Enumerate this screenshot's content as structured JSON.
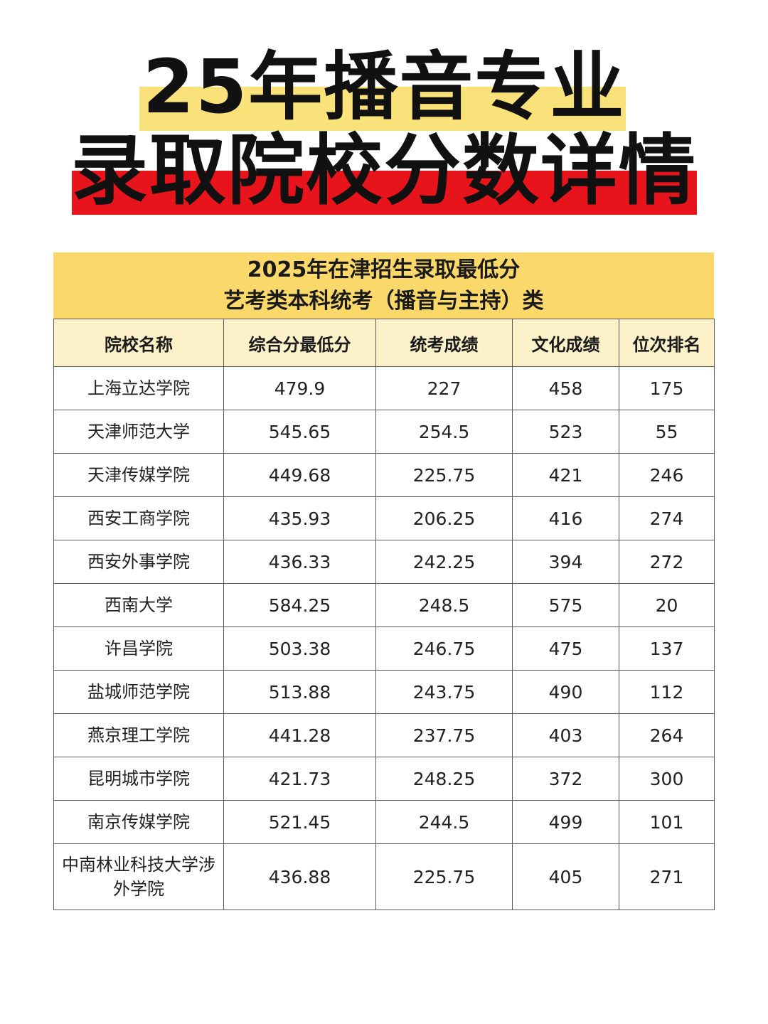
{
  "title": {
    "line1": "25年播音专业",
    "line2": "录取院校分数详情"
  },
  "colors": {
    "yellow_highlight": "#f9e27a",
    "red_highlight": "#e8141b",
    "table_header": "#fbd86a",
    "column_header": "#fdf1c9"
  },
  "table": {
    "heading_line1": "2025年在津招生录取最低分",
    "heading_line2": "艺考类本科统考（播音与主持）类",
    "columns": [
      "院校名称",
      "综合分最低分",
      "统考成绩",
      "文化成绩",
      "位次排名"
    ],
    "rows": [
      [
        "上海立达学院",
        "479.9",
        "227",
        "458",
        "175"
      ],
      [
        "天津师范大学",
        "545.65",
        "254.5",
        "523",
        "55"
      ],
      [
        "天津传媒学院",
        "449.68",
        "225.75",
        "421",
        "246"
      ],
      [
        "西安工商学院",
        "435.93",
        "206.25",
        "416",
        "274"
      ],
      [
        "西安外事学院",
        "436.33",
        "242.25",
        "394",
        "272"
      ],
      [
        "西南大学",
        "584.25",
        "248.5",
        "575",
        "20"
      ],
      [
        "许昌学院",
        "503.38",
        "246.75",
        "475",
        "137"
      ],
      [
        "盐城师范学院",
        "513.88",
        "243.75",
        "490",
        "112"
      ],
      [
        "燕京理工学院",
        "441.28",
        "237.75",
        "403",
        "264"
      ],
      [
        "昆明城市学院",
        "421.73",
        "248.25",
        "372",
        "300"
      ],
      [
        "南京传媒学院",
        "521.45",
        "244.5",
        "499",
        "101"
      ],
      [
        "中南林业科技大学涉外学院",
        "436.88",
        "225.75",
        "405",
        "271"
      ]
    ]
  }
}
